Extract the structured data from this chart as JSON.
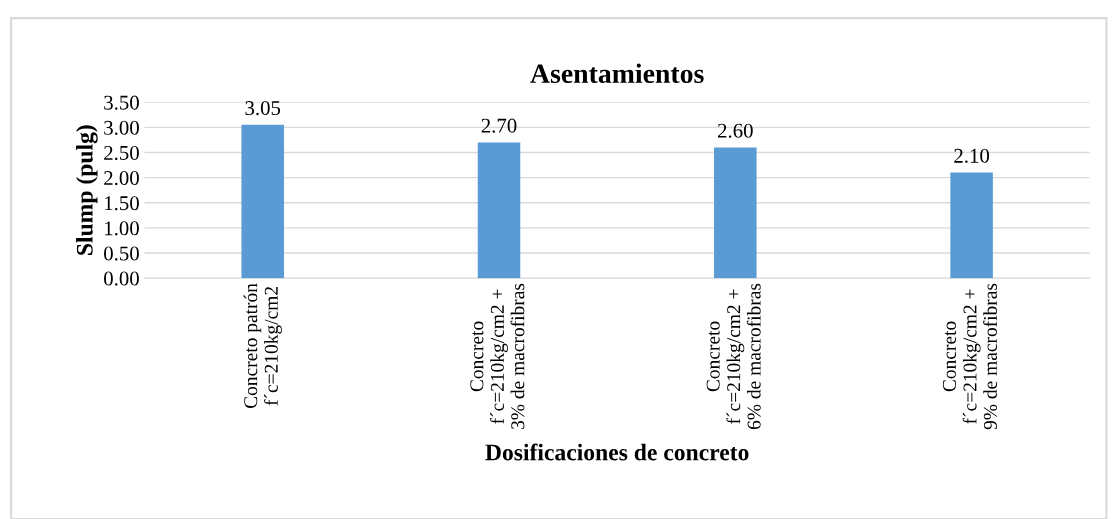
{
  "chart_data": {
    "type": "bar",
    "title": "Asentamientos",
    "xlabel": "Dosificaciones de concreto",
    "ylabel": "Slump (pulg)",
    "categories": [
      "Concreto patrón\nf´c=210kg/cm2",
      "Concreto\nf´c=210kg/cm2 +\n3% de macrofibras",
      "Concreto\nf´c=210kg/cm2 +\n6% de macrofibras",
      "Concreto\nf´c=210kg/cm2 +\n9% de macrofibras"
    ],
    "values": [
      3.05,
      2.7,
      2.6,
      2.1
    ],
    "color": "#5b9bd5",
    "value_labels": [
      "3.05",
      "2.70",
      "2.60",
      "2.10"
    ],
    "ylim": [
      0,
      3.5
    ],
    "yticks": [
      {
        "value": 0,
        "label": "0.00"
      },
      {
        "value": 0.5,
        "label": "0.50"
      },
      {
        "value": 1,
        "label": "1.00"
      },
      {
        "value": 1.5,
        "label": "1.50"
      },
      {
        "value": 2,
        "label": "2.00"
      },
      {
        "value": 2.5,
        "label": "2.50"
      },
      {
        "value": 3,
        "label": "3.00"
      },
      {
        "value": 3.5,
        "label": "3.50"
      }
    ],
    "grid": "y",
    "legend": false
  }
}
